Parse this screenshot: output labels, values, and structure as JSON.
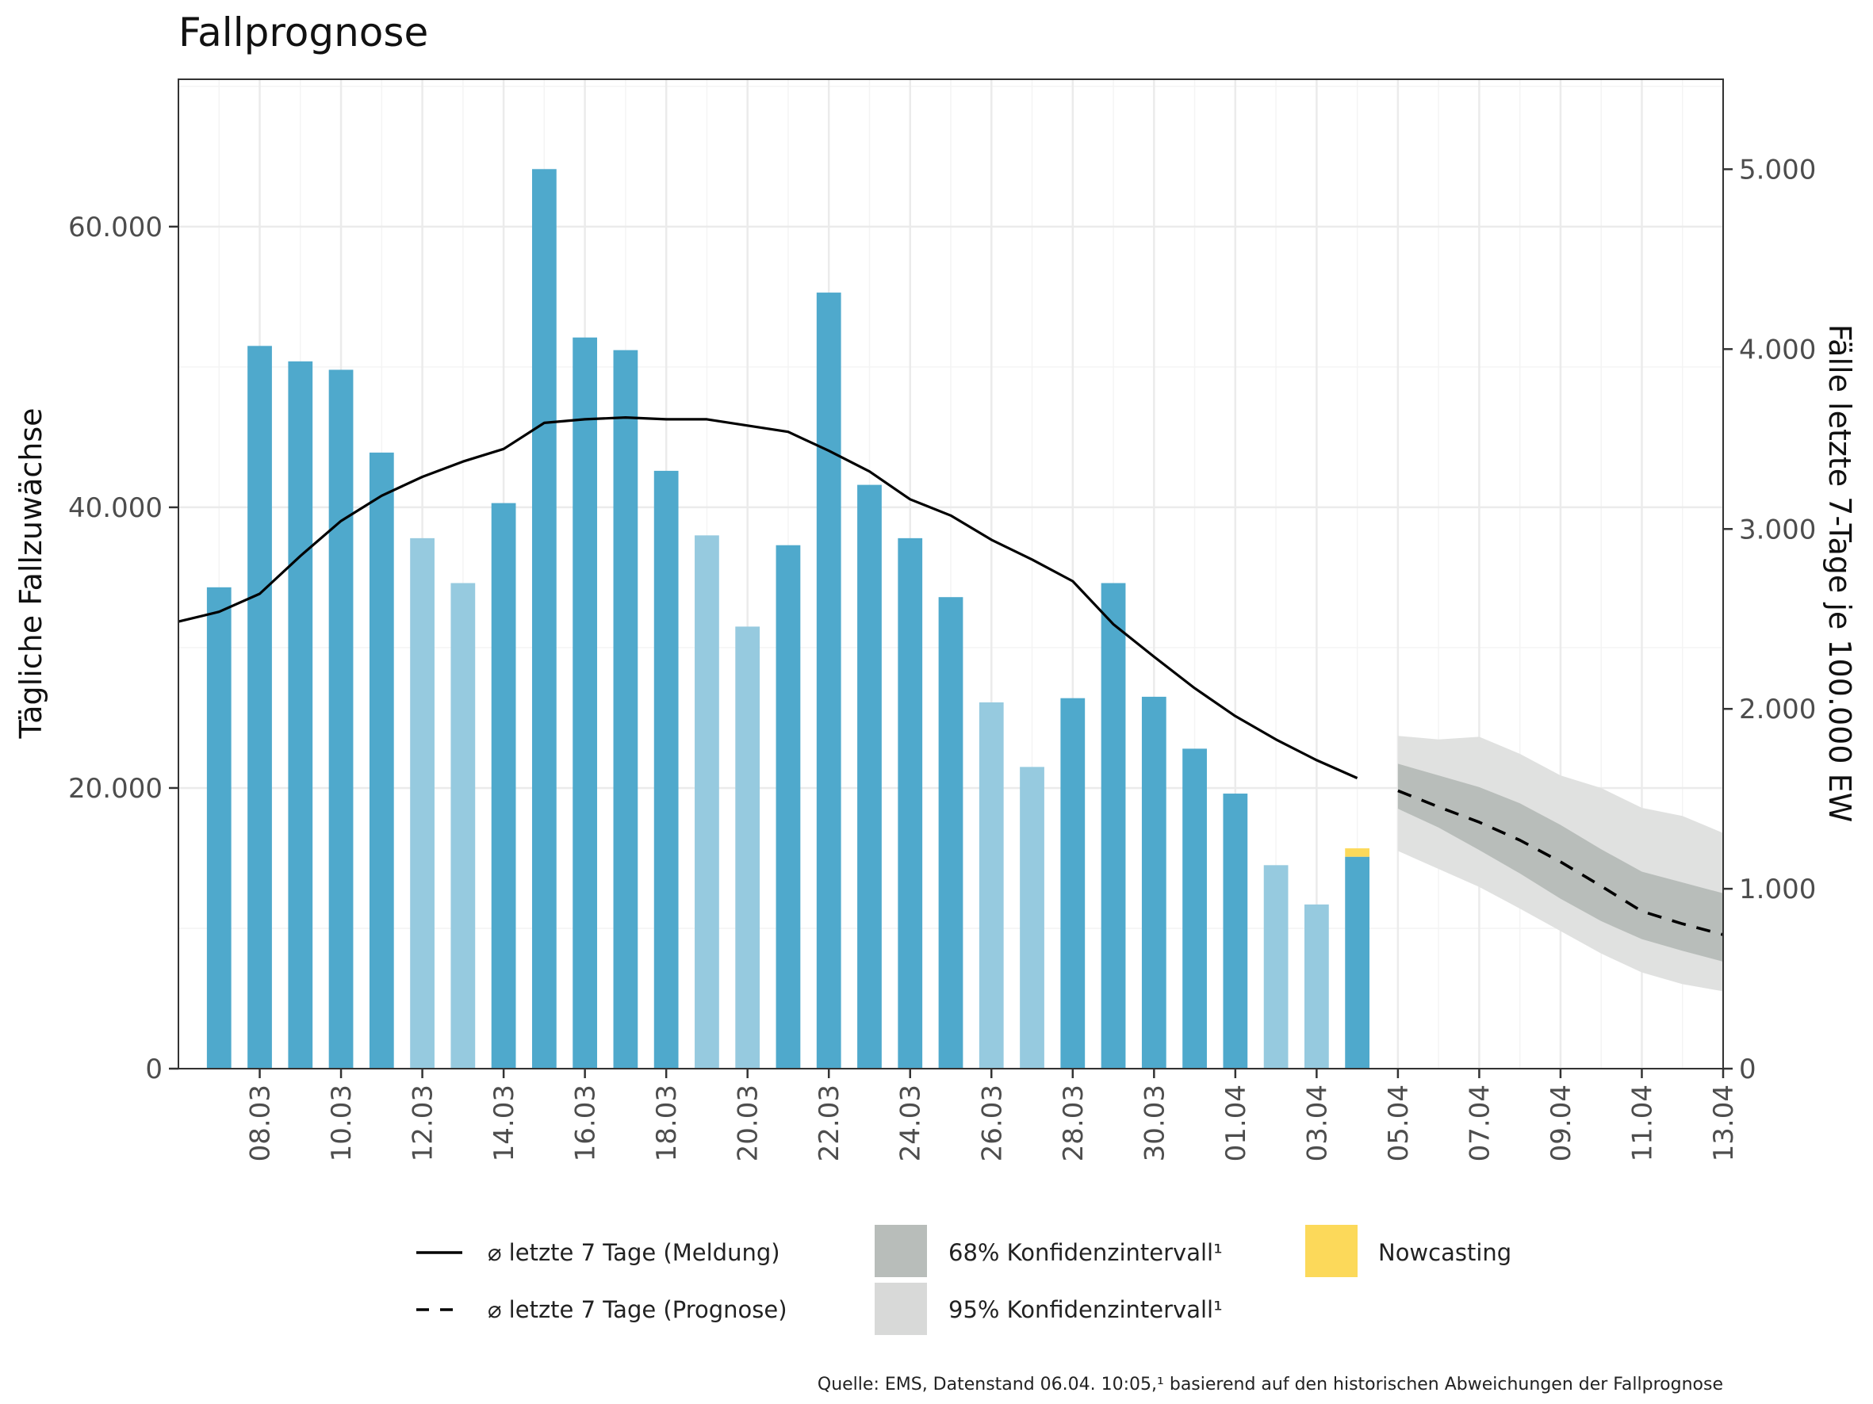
{
  "chart_data": {
    "type": "bar",
    "title": "Fallprognose",
    "ylabel": "Tägliche Fallzuwächse",
    "y2label": "Fälle letzte 7-Tage je 100.000 EW",
    "ylim": [
      0,
      70500
    ],
    "y2lim": [
      0,
      5500
    ],
    "yticks": [
      0,
      20000,
      40000,
      60000
    ],
    "ytick_labels": [
      "0",
      "20.000",
      "40.000",
      "60.000"
    ],
    "y2ticks": [
      0,
      1000,
      2000,
      3000,
      4000,
      5000
    ],
    "y2tick_labels": [
      "0",
      "1.000",
      "2.000",
      "3.000",
      "4.000",
      "5.000"
    ],
    "x_range": [
      "2022-03-06",
      "2022-04-13"
    ],
    "xticks": [
      "2022-03-08",
      "2022-03-10",
      "2022-03-12",
      "2022-03-14",
      "2022-03-16",
      "2022-03-18",
      "2022-03-20",
      "2022-03-22",
      "2022-03-24",
      "2022-03-26",
      "2022-03-28",
      "2022-03-30",
      "2022-04-01",
      "2022-04-03",
      "2022-04-05",
      "2022-04-07",
      "2022-04-09",
      "2022-04-11",
      "2022-04-13"
    ],
    "xtick_labels": [
      "08.03",
      "10.03",
      "12.03",
      "14.03",
      "16.03",
      "18.03",
      "20.03",
      "22.03",
      "24.03",
      "26.03",
      "28.03",
      "30.03",
      "01.04",
      "03.04",
      "05.04",
      "07.04",
      "09.04",
      "11.04",
      "13.04"
    ],
    "grid": true,
    "colors": {
      "bar_weekday": "#4fa9cc",
      "bar_weekend": "#96cadf",
      "nowcasting": "#fcd95a",
      "ci68": "#b8bdba",
      "ci95": "#e0e1e0",
      "line": "#000000",
      "grid": "#ebebeb"
    },
    "bars": [
      {
        "date": "2022-03-07",
        "value": 34300,
        "weekend": false
      },
      {
        "date": "2022-03-08",
        "value": 51500,
        "weekend": false
      },
      {
        "date": "2022-03-09",
        "value": 50400,
        "weekend": false
      },
      {
        "date": "2022-03-10",
        "value": 49800,
        "weekend": false
      },
      {
        "date": "2022-03-11",
        "value": 43900,
        "weekend": false
      },
      {
        "date": "2022-03-12",
        "value": 37800,
        "weekend": true
      },
      {
        "date": "2022-03-13",
        "value": 34600,
        "weekend": true
      },
      {
        "date": "2022-03-14",
        "value": 40300,
        "weekend": false
      },
      {
        "date": "2022-03-15",
        "value": 64100,
        "weekend": false
      },
      {
        "date": "2022-03-16",
        "value": 52100,
        "weekend": false
      },
      {
        "date": "2022-03-17",
        "value": 51200,
        "weekend": false
      },
      {
        "date": "2022-03-18",
        "value": 42600,
        "weekend": false
      },
      {
        "date": "2022-03-19",
        "value": 38000,
        "weekend": true
      },
      {
        "date": "2022-03-20",
        "value": 31500,
        "weekend": true
      },
      {
        "date": "2022-03-21",
        "value": 37300,
        "weekend": false
      },
      {
        "date": "2022-03-22",
        "value": 55300,
        "weekend": false
      },
      {
        "date": "2022-03-23",
        "value": 41600,
        "weekend": false
      },
      {
        "date": "2022-03-24",
        "value": 37800,
        "weekend": false
      },
      {
        "date": "2022-03-25",
        "value": 33600,
        "weekend": false
      },
      {
        "date": "2022-03-26",
        "value": 26100,
        "weekend": true
      },
      {
        "date": "2022-03-27",
        "value": 21500,
        "weekend": true
      },
      {
        "date": "2022-03-28",
        "value": 26400,
        "weekend": false
      },
      {
        "date": "2022-03-29",
        "value": 34600,
        "weekend": false
      },
      {
        "date": "2022-03-30",
        "value": 26500,
        "weekend": false
      },
      {
        "date": "2022-03-31",
        "value": 22800,
        "weekend": false
      },
      {
        "date": "2022-04-01",
        "value": 19600,
        "weekend": false
      },
      {
        "date": "2022-04-02",
        "value": 14500,
        "weekend": true
      },
      {
        "date": "2022-04-03",
        "value": 11700,
        "weekend": true
      },
      {
        "date": "2022-04-04",
        "value": 15100,
        "weekend": false,
        "nowcasting": 600
      }
    ],
    "series": [
      {
        "name": "⌀ letzte 7 Tage (Meldung)",
        "axis": "right",
        "x": [
          "2022-03-06",
          "2022-03-07",
          "2022-03-08",
          "2022-03-09",
          "2022-03-10",
          "2022-03-11",
          "2022-03-12",
          "2022-03-13",
          "2022-03-14",
          "2022-03-15",
          "2022-03-16",
          "2022-03-17",
          "2022-03-18",
          "2022-03-19",
          "2022-03-20",
          "2022-03-21",
          "2022-03-22",
          "2022-03-23",
          "2022-03-24",
          "2022-03-25",
          "2022-03-26",
          "2022-03-27",
          "2022-03-28",
          "2022-03-29",
          "2022-03-30",
          "2022-03-31",
          "2022-04-01",
          "2022-04-02",
          "2022-04-03",
          "2022-04-04"
        ],
        "y": [
          2485,
          2540,
          2640,
          2850,
          3045,
          3185,
          3290,
          3375,
          3445,
          3590,
          3610,
          3620,
          3610,
          3610,
          3575,
          3540,
          3435,
          3320,
          3165,
          3075,
          2940,
          2830,
          2710,
          2470,
          2290,
          2115,
          1960,
          1830,
          1715,
          1615
        ]
      },
      {
        "name": "⌀ letzte 7 Tage (Prognose)",
        "axis": "right",
        "x": [
          "2022-04-05",
          "2022-04-06",
          "2022-04-07",
          "2022-04-08",
          "2022-04-09",
          "2022-04-10",
          "2022-04-11",
          "2022-04-12",
          "2022-04-13"
        ],
        "y": [
          1545,
          1455,
          1370,
          1270,
          1150,
          1015,
          875,
          805,
          745
        ]
      }
    ],
    "ci68": {
      "name": "68% Konfidenzintervall¹",
      "axis": "right",
      "x": [
        "2022-04-05",
        "2022-04-06",
        "2022-04-07",
        "2022-04-08",
        "2022-04-09",
        "2022-04-10",
        "2022-04-11",
        "2022-04-12",
        "2022-04-13"
      ],
      "lower": [
        1445,
        1340,
        1215,
        1085,
        945,
        820,
        720,
        655,
        595
      ],
      "upper": [
        1695,
        1630,
        1565,
        1475,
        1355,
        1220,
        1095,
        1035,
        975
      ]
    },
    "ci95": {
      "name": "95% Konfidenzintervall¹",
      "axis": "right",
      "x": [
        "2022-04-05",
        "2022-04-06",
        "2022-04-07",
        "2022-04-08",
        "2022-04-09",
        "2022-04-10",
        "2022-04-11",
        "2022-04-12",
        "2022-04-13"
      ],
      "lower": [
        1210,
        1110,
        1010,
        890,
        765,
        640,
        535,
        470,
        430
      ],
      "upper": [
        1850,
        1830,
        1845,
        1750,
        1630,
        1560,
        1450,
        1405,
        1310
      ]
    },
    "legend": {
      "placement": "bottom",
      "items": {
        "line_meldung": "⌀ letzte 7 Tage (Meldung)",
        "line_prognose": "⌀ letzte 7 Tage (Prognose)",
        "ci68": "68% Konfidenzintervall¹",
        "ci95": "95% Konfidenzintervall¹",
        "nowcasting": "Nowcasting"
      }
    },
    "source": "Quelle: EMS, Datenstand 06.04. 10:05,¹ basierend auf den historischen Abweichungen der Fallprognose"
  }
}
